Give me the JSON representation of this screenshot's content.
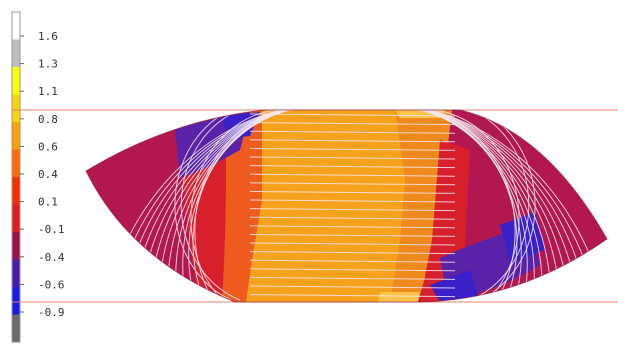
{
  "legend": {
    "ticks": [
      "1.6",
      "1.3",
      "1.1",
      "0.8",
      "0.6",
      "0.4",
      "0.1",
      "-0.1",
      "-0.4",
      "-0.6",
      "-0.9"
    ],
    "swatches": [
      "#ffffff",
      "#bdbdbd",
      "#ffff00",
      "#ffd700",
      "#ffa000",
      "#ff6a00",
      "#ff2a00",
      "#e31b1b",
      "#a0104a",
      "#4a1ab0",
      "#1a1ae8",
      "#6a6a6a"
    ]
  },
  "plot": {
    "field_colors": {
      "orange": "#f7a21c",
      "orange_dark": "#f08a1e",
      "yellow_orange": "#fcc24a",
      "red_orange": "#ef5a1f",
      "red": "#d8202c",
      "crimson": "#b2184f",
      "purple": "#5a22a8",
      "blue_violet": "#3a20c8"
    },
    "guide_line_color": "#e2836d",
    "contour_line_color": "#f3e8ee"
  }
}
